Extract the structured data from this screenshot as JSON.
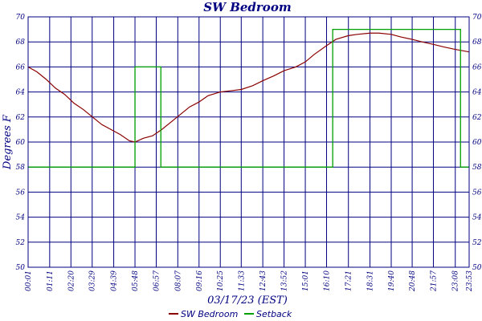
{
  "chart_data": {
    "type": "line",
    "title": "SW Bedroom",
    "xlabel": "03/17/23 (EST)",
    "ylabel": "Degrees F",
    "ylim": [
      50,
      70
    ],
    "y_ticks": [
      "50",
      "52",
      "54",
      "56",
      "58",
      "60",
      "62",
      "64",
      "66",
      "68",
      "70"
    ],
    "x_ticks": [
      "00:01",
      "01:11",
      "02:20",
      "03:29",
      "04:39",
      "05:48",
      "06:57",
      "08:07",
      "09:16",
      "10:25",
      "11:33",
      "12:43",
      "13:52",
      "15:01",
      "16:10",
      "17:21",
      "18:31",
      "19:40",
      "20:48",
      "21:57",
      "23:08",
      "23:53"
    ],
    "grid": true,
    "legend_position": "bottom",
    "series": [
      {
        "name": "SW Bedroom",
        "color": "#8b0000",
        "points": [
          [
            "00:01",
            66.0
          ],
          [
            "00:30",
            65.6
          ],
          [
            "01:00",
            65.0
          ],
          [
            "01:30",
            64.3
          ],
          [
            "02:00",
            63.8
          ],
          [
            "02:30",
            63.1
          ],
          [
            "03:00",
            62.6
          ],
          [
            "03:30",
            62.0
          ],
          [
            "04:00",
            61.4
          ],
          [
            "04:30",
            61.0
          ],
          [
            "05:00",
            60.6
          ],
          [
            "05:30",
            60.1
          ],
          [
            "05:48",
            60.0
          ],
          [
            "06:15",
            60.3
          ],
          [
            "06:45",
            60.5
          ],
          [
            "07:15",
            61.0
          ],
          [
            "07:45",
            61.6
          ],
          [
            "08:15",
            62.2
          ],
          [
            "08:45",
            62.8
          ],
          [
            "09:16",
            63.2
          ],
          [
            "09:45",
            63.7
          ],
          [
            "10:25",
            64.0
          ],
          [
            "11:00",
            64.1
          ],
          [
            "11:33",
            64.2
          ],
          [
            "12:10",
            64.5
          ],
          [
            "12:43",
            64.9
          ],
          [
            "13:20",
            65.3
          ],
          [
            "13:52",
            65.7
          ],
          [
            "14:30",
            66.0
          ],
          [
            "15:01",
            66.4
          ],
          [
            "15:30",
            67.0
          ],
          [
            "16:10",
            67.7
          ],
          [
            "16:40",
            68.2
          ],
          [
            "17:21",
            68.5
          ],
          [
            "17:50",
            68.6
          ],
          [
            "18:31",
            68.7
          ],
          [
            "19:00",
            68.7
          ],
          [
            "19:40",
            68.6
          ],
          [
            "20:10",
            68.4
          ],
          [
            "20:48",
            68.2
          ],
          [
            "21:20",
            68.0
          ],
          [
            "21:57",
            67.8
          ],
          [
            "22:30",
            67.6
          ],
          [
            "23:08",
            67.4
          ],
          [
            "23:53",
            67.2
          ]
        ]
      },
      {
        "name": "Setback",
        "color": "#00a000",
        "points": [
          [
            "00:01",
            58
          ],
          [
            "05:48",
            58
          ],
          [
            "05:48",
            66
          ],
          [
            "07:12",
            66
          ],
          [
            "07:12",
            58
          ],
          [
            "16:30",
            58
          ],
          [
            "16:30",
            69
          ],
          [
            "23:25",
            69
          ],
          [
            "23:25",
            58
          ],
          [
            "23:53",
            58
          ]
        ]
      }
    ]
  }
}
